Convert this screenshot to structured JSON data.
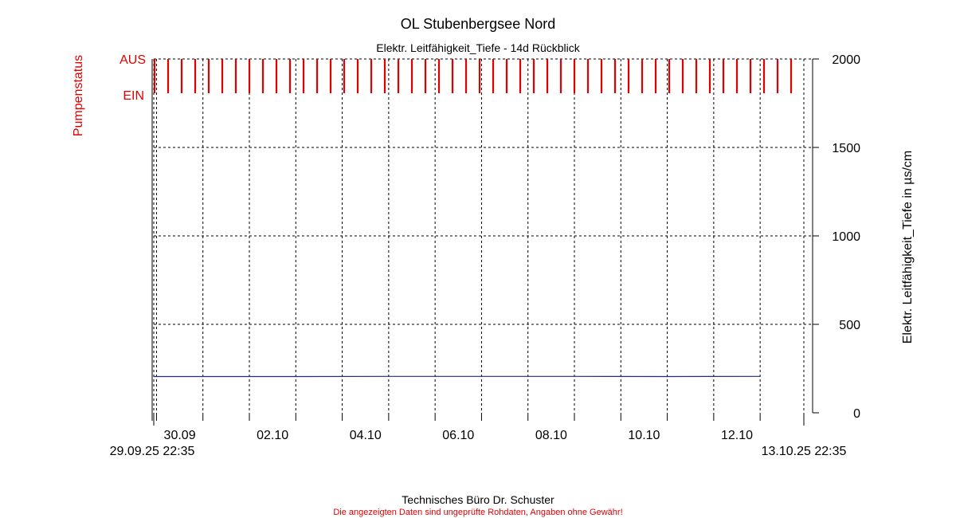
{
  "title": "OL Stubenbergsee Nord",
  "subtitle": "Elektr. Leitfähigkeit_Tiefe - 14d Rückblick",
  "pump_axis": {
    "label": "Pumpenstatus",
    "aus_label": "AUS",
    "ein_label": "EIN",
    "color": "#e00000"
  },
  "y_axis": {
    "label": "Elektr. Leitfähigkeit_Tiefe in µs/cm",
    "min": 0,
    "max": 2000,
    "ticks": [
      "0",
      "500",
      "1000",
      "1500",
      "2000"
    ]
  },
  "x_axis": {
    "start_label": "29.09.25 22:35",
    "end_label": "13.10.25 22:35",
    "tick_labels": [
      "30.09",
      "02.10",
      "04.10",
      "06.10",
      "08.10",
      "10.10",
      "12.10"
    ]
  },
  "footer": {
    "line1": "Technisches Büro Dr. Schuster",
    "line2": "Die angezeigten Daten sind ungeprüfte Rohdaten, Angaben ohne Gewähr!"
  },
  "chart_data": {
    "type": "line",
    "x_range": [
      "2025-09-29 22:35",
      "2025-10-13 22:35"
    ],
    "ylim": [
      0,
      2000
    ],
    "grid": true,
    "series": [
      {
        "color": "#1f2a8c",
        "x": [
          "2025-09-29",
          "2025-10-01",
          "2025-10-03",
          "2025-10-05",
          "2025-10-07",
          "2025-10-09",
          "2025-10-11",
          "2025-10-13"
        ],
        "values": [
          205,
          205,
          205,
          206,
          206,
          206,
          205,
          206
        ]
      }
    ],
    "pump_status": {
      "color": "#e00000",
      "states": [
        "EIN",
        "AUS"
      ],
      "pulse_times": [
        "2025-09-29 23:00",
        "2025-09-30 06:00",
        "2025-09-30 13:00",
        "2025-09-30 20:00",
        "2025-10-01 03:00",
        "2025-10-01 10:00",
        "2025-10-01 17:00",
        "2025-10-02 00:00",
        "2025-10-02 07:00",
        "2025-10-02 14:00",
        "2025-10-02 21:00",
        "2025-10-03 04:00",
        "2025-10-03 11:00",
        "2025-10-03 18:00",
        "2025-10-04 01:00",
        "2025-10-04 08:00",
        "2025-10-04 15:00",
        "2025-10-04 22:00",
        "2025-10-05 05:00",
        "2025-10-05 12:00",
        "2025-10-05 19:00",
        "2025-10-06 02:00",
        "2025-10-06 09:00",
        "2025-10-06 16:00",
        "2025-10-06 23:00",
        "2025-10-07 06:00",
        "2025-10-07 13:00",
        "2025-10-07 20:00",
        "2025-10-08 03:00",
        "2025-10-08 10:00",
        "2025-10-08 17:00",
        "2025-10-09 00:00",
        "2025-10-09 07:00",
        "2025-10-09 14:00",
        "2025-10-09 21:00",
        "2025-10-10 04:00",
        "2025-10-10 11:00",
        "2025-10-10 18:00",
        "2025-10-11 01:00",
        "2025-10-11 08:00",
        "2025-10-11 15:00",
        "2025-10-11 22:00",
        "2025-10-12 05:00",
        "2025-10-12 12:00",
        "2025-10-12 19:00",
        "2025-10-13 02:00",
        "2025-10-13 09:00",
        "2025-10-13 16:00"
      ]
    }
  }
}
